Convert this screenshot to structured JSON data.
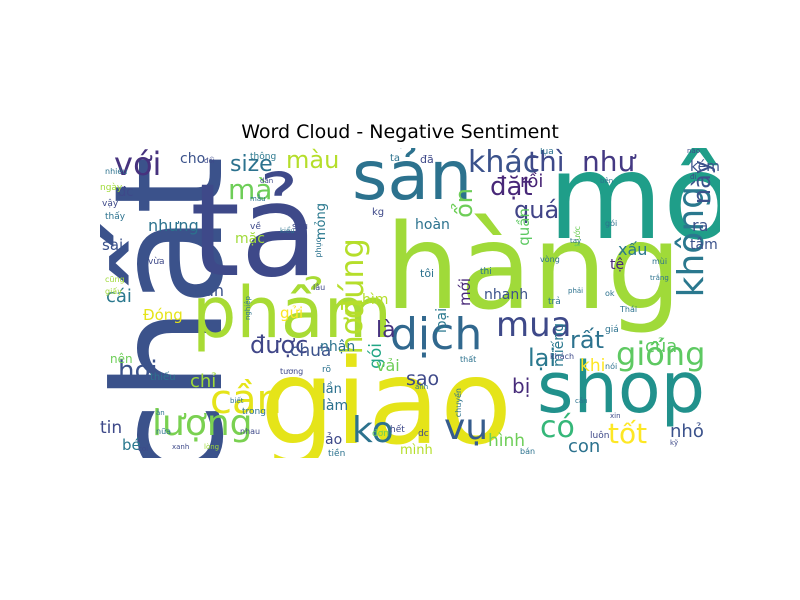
{
  "chart_data": {
    "type": "wordcloud",
    "title": "Word Cloud - Negative Sentiment",
    "colormap": "viridis",
    "background": "#ffffff",
    "words": [
      {
        "text": "hàng",
        "weight": 1.0,
        "color": "#a0da39"
      },
      {
        "text": "giao",
        "weight": 0.95,
        "color": "#e5e419"
      },
      {
        "text": "chất",
        "weight": 0.93,
        "color": "#3b528b"
      },
      {
        "text": "tả",
        "weight": 0.9,
        "color": "#3e4989"
      },
      {
        "text": "mô",
        "weight": 0.8,
        "color": "#1f9e89"
      },
      {
        "text": "shop",
        "weight": 0.7,
        "color": "#21918c"
      },
      {
        "text": "sản",
        "weight": 0.6,
        "color": "#2c728e"
      },
      {
        "text": "phẩm",
        "weight": 0.55,
        "color": "#a8db34"
      },
      {
        "text": "dịch",
        "weight": 0.45,
        "color": "#31688e"
      },
      {
        "text": "lượng",
        "weight": 0.42,
        "color": "#7ad151"
      },
      {
        "text": "vụ",
        "weight": 0.4,
        "color": "#365c8d"
      },
      {
        "text": "cần",
        "weight": 0.38,
        "color": "#e5e419"
      },
      {
        "text": "không",
        "weight": 0.37,
        "color": "#2a788e"
      },
      {
        "text": "ko",
        "weight": 0.36,
        "color": "#2c728e"
      },
      {
        "text": "mua",
        "weight": 0.35,
        "color": "#3e4989"
      },
      {
        "text": "đúng",
        "weight": 0.34,
        "color": "#b5de2b"
      },
      {
        "text": "giống",
        "weight": 0.33,
        "color": "#5ec962"
      },
      {
        "text": "với",
        "weight": 0.32,
        "color": "#46327e"
      },
      {
        "text": "khác",
        "weight": 0.31,
        "color": "#3b528b"
      },
      {
        "text": "hơn",
        "weight": 0.31,
        "color": "#b5de2b"
      },
      {
        "text": "có",
        "weight": 0.3,
        "color": "#35b779"
      },
      {
        "text": "tốt",
        "weight": 0.29,
        "color": "#fde725"
      },
      {
        "text": "thì",
        "weight": 0.29,
        "color": "#3e4989"
      },
      {
        "text": "như",
        "weight": 0.28,
        "color": "#443983"
      },
      {
        "text": "mà",
        "weight": 0.28,
        "color": "#6ece58"
      },
      {
        "text": "size",
        "weight": 0.27,
        "color": "#2c728e"
      },
      {
        "text": "màu",
        "weight": 0.27,
        "color": "#b5de2b"
      },
      {
        "text": "hơi",
        "weight": 0.27,
        "color": "#3b528b"
      },
      {
        "text": "quá",
        "weight": 0.27,
        "color": "#414487"
      },
      {
        "text": "lại",
        "weight": 0.27,
        "color": "#2a788e"
      },
      {
        "text": "đặt",
        "weight": 0.26,
        "color": "#482878"
      },
      {
        "text": "này",
        "weight": 0.26,
        "color": "#3b528b"
      },
      {
        "text": "ổn",
        "weight": 0.25,
        "color": "#6ece58"
      },
      {
        "text": "được",
        "weight": 0.24,
        "color": "#404688"
      },
      {
        "text": "là",
        "weight": 0.24,
        "color": "#46327e"
      },
      {
        "text": "rất",
        "weight": 0.23,
        "color": "#2c728e"
      },
      {
        "text": "rồi",
        "weight": 0.22,
        "color": "#482475"
      },
      {
        "text": "của",
        "weight": 0.2,
        "color": "#5ec962"
      },
      {
        "text": "nhỏ",
        "weight": 0.2,
        "color": "#3b528b"
      },
      {
        "text": "bị",
        "weight": 0.2,
        "color": "#472c7a"
      },
      {
        "text": "con",
        "weight": 0.2,
        "color": "#2c728e"
      },
      {
        "text": "hình",
        "weight": 0.2,
        "color": "#6ece58"
      },
      {
        "text": "gói",
        "weight": 0.19,
        "color": "#21a685"
      },
      {
        "text": "sao",
        "weight": 0.19,
        "color": "#3e4989"
      },
      {
        "text": "chưa",
        "weight": 0.18,
        "color": "#3b528b"
      },
      {
        "text": "khi",
        "weight": 0.18,
        "color": "#fde725"
      },
      {
        "text": "tin",
        "weight": 0.18,
        "color": "#3e4989"
      },
      {
        "text": "bé",
        "weight": 0.17,
        "color": "#2a788e"
      },
      {
        "text": "chỉ",
        "weight": 0.17,
        "color": "#a0da39"
      },
      {
        "text": "toàn",
        "weight": 0.17,
        "color": "#3b528b"
      },
      {
        "text": "cái",
        "weight": 0.17,
        "color": "#2a788e"
      },
      {
        "text": "sai",
        "weight": 0.16,
        "color": "#3b528b"
      },
      {
        "text": "nhưng",
        "weight": 0.16,
        "color": "#2c728e"
      },
      {
        "text": "mặc",
        "weight": 0.15,
        "color": "#a0da39"
      },
      {
        "text": "gửi",
        "weight": 0.16,
        "color": "#fde725"
      },
      {
        "text": "vải",
        "weight": 0.17,
        "color": "#6ece58"
      },
      {
        "text": "bìm",
        "weight": 0.14,
        "color": "#b5de2b"
      },
      {
        "text": "nhận",
        "weight": 0.17,
        "color": "#2c728e"
      },
      {
        "text": "loại",
        "weight": 0.16,
        "color": "#2a788e"
      },
      {
        "text": "mới",
        "weight": 0.16,
        "color": "#482878"
      },
      {
        "text": "nhanh",
        "weight": 0.16,
        "color": "#3b528b"
      },
      {
        "text": "miếng",
        "weight": 0.15,
        "color": "#2a788e"
      },
      {
        "text": "quần",
        "weight": 0.15,
        "color": "#5ec962"
      },
      {
        "text": "hoàn",
        "weight": 0.14,
        "color": "#2c728e"
      },
      {
        "text": "mỏng",
        "weight": 0.14,
        "color": "#2a788e"
      },
      {
        "text": "xấu",
        "weight": 0.14,
        "color": "#2a788e"
      },
      {
        "text": "tệ",
        "weight": 0.14,
        "color": "#482878"
      },
      {
        "text": "ra",
        "weight": 0.14,
        "color": "#3b528b"
      },
      {
        "text": "tâm",
        "weight": 0.13,
        "color": "#3b528b"
      },
      {
        "text": "kém",
        "weight": 0.13,
        "color": "#3b528b"
      },
      {
        "text": "cho",
        "weight": 0.13,
        "color": "#3b528b"
      },
      {
        "text": "đc",
        "weight": 0.12,
        "color": "#3e4989"
      },
      {
        "text": "mình",
        "weight": 0.13,
        "color": "#b5de2b"
      },
      {
        "text": "làm",
        "weight": 0.13,
        "color": "#2c728e"
      },
      {
        "text": "lần",
        "weight": 0.12,
        "color": "#2c728e"
      },
      {
        "text": "ảo",
        "weight": 0.12,
        "color": "#3e4989"
      },
      {
        "text": "Đóng",
        "weight": 0.13,
        "color": "#e5e419"
      },
      {
        "text": "nên",
        "weight": 0.11,
        "color": "#6ece58"
      },
      {
        "text": "thiếu",
        "weight": 0.1,
        "color": "#2c728e"
      },
      {
        "text": "hết",
        "weight": 0.09,
        "color": "#3e4989"
      },
      {
        "text": "dc",
        "weight": 0.09,
        "color": "#3e4989"
      },
      {
        "text": "luôn",
        "weight": 0.09,
        "color": "#3e4989"
      },
      {
        "text": "thông",
        "weight": 0.09,
        "color": "#2a788e"
      },
      {
        "text": "đã",
        "weight": 0.1,
        "color": "#3e4989"
      },
      {
        "text": "ta",
        "weight": 0.09,
        "color": "#2c728e"
      },
      {
        "text": "kg",
        "weight": 0.09,
        "color": "#3e4989"
      },
      {
        "text": "sau",
        "weight": 0.08,
        "color": "#3e4989"
      },
      {
        "text": "về",
        "weight": 0.08,
        "color": "#3e4989"
      },
      {
        "text": "tôi",
        "weight": 0.09,
        "color": "#2c728e"
      },
      {
        "text": "thi",
        "weight": 0.08,
        "color": "#2c728e"
      },
      {
        "text": "trả",
        "weight": 0.09,
        "color": "#2c728e"
      },
      {
        "text": "ngày",
        "weight": 0.08,
        "color": "#a0da39"
      },
      {
        "text": "giá",
        "weight": 0.08,
        "color": "#2c728e"
      },
      {
        "text": "tiền",
        "weight": 0.08,
        "color": "#2c728e"
      },
      {
        "text": "trong",
        "weight": 0.07,
        "color": "#2c728e"
      },
      {
        "text": "thấy",
        "weight": 0.08,
        "color": "#2c728e"
      },
      {
        "text": "vậy",
        "weight": 0.08,
        "color": "#3e4989"
      },
      {
        "text": "nữa",
        "weight": 0.07,
        "color": "#2c728e"
      },
      {
        "text": "khách",
        "weight": 0.07,
        "color": "#3e4989"
      },
      {
        "text": "đơn",
        "weight": 0.07,
        "color": "#6ece58"
      },
      {
        "text": "vừa",
        "weight": 0.07,
        "color": "#3e4989"
      },
      {
        "text": "rõ",
        "weight": 0.08,
        "color": "#2c728e"
      },
      {
        "text": "nhau",
        "weight": 0.07,
        "color": "#3e4989"
      },
      {
        "text": "chuyển",
        "weight": 0.07,
        "color": "#2c728e"
      },
      {
        "text": "nhiều",
        "weight": 0.07,
        "color": "#2c728e"
      },
      {
        "text": "cũng",
        "weight": 0.07,
        "color": "#a0da39"
      },
      {
        "text": "giấy",
        "weight": 0.07,
        "color": "#a0da39"
      },
      {
        "text": "nói",
        "weight": 0.07,
        "color": "#2c728e"
      },
      {
        "text": "thất",
        "weight": 0.07,
        "color": "#2c728e"
      },
      {
        "text": "bán",
        "weight": 0.06,
        "color": "#2c728e"
      },
      {
        "text": "lâu",
        "weight": 0.06,
        "color": "#3e4989"
      },
      {
        "text": "ok",
        "weight": 0.06,
        "color": "#2c728e"
      },
      {
        "text": "xanh",
        "weight": 0.06,
        "color": "#3e4989"
      },
      {
        "text": "phục",
        "weight": 0.06,
        "color": "#2c728e"
      },
      {
        "text": "nghiệp",
        "weight": 0.06,
        "color": "#2c728e"
      },
      {
        "text": "kiểu",
        "weight": 0.06,
        "color": "#2c728e"
      },
      {
        "text": "tương",
        "weight": 0.06,
        "color": "#3e4989"
      },
      {
        "text": "vòng",
        "weight": 0.06,
        "color": "#2c728e"
      },
      {
        "text": "lụa",
        "weight": 0.06,
        "color": "#2c728e"
      },
      {
        "text": "gói",
        "weight": 0.06,
        "color": "#2c728e"
      },
      {
        "text": "trước",
        "weight": 0.06,
        "color": "#6ece58"
      },
      {
        "text": "bên",
        "weight": 0.05,
        "color": "#2c728e"
      },
      {
        "text": "dán",
        "weight": 0.05,
        "color": "#3e4989"
      },
      {
        "text": "kỹ",
        "weight": 0.05,
        "color": "#3e4989"
      },
      {
        "text": "biết",
        "weight": 0.05,
        "color": "#2c728e"
      },
      {
        "text": "nào",
        "weight": 0.05,
        "color": "#3e4989"
      },
      {
        "text": "đi",
        "weight": 0.05,
        "color": "#3e4989"
      },
      {
        "text": "ăn",
        "weight": 0.05,
        "color": "#2c728e"
      },
      {
        "text": "mùi",
        "weight": 0.05,
        "color": "#2c728e"
      },
      {
        "text": "Thái",
        "weight": 0.05,
        "color": "#2c728e"
      },
      {
        "text": "trắng",
        "weight": 0.05,
        "color": "#2c728e"
      },
      {
        "text": "lòng",
        "weight": 0.05,
        "color": "#a0da39"
      },
      {
        "text": "cần",
        "weight": 0.05,
        "color": "#2c728e"
      },
      {
        "text": "đổi",
        "weight": 0.05,
        "color": "#3e4989"
      },
      {
        "text": "xin",
        "weight": 0.04,
        "color": "#3e4989"
      },
      {
        "text": "coi",
        "weight": 0.04,
        "color": "#3e4989"
      },
      {
        "text": "mẫu",
        "weight": 0.04,
        "color": "#2c728e"
      },
      {
        "text": "ảnh",
        "weight": 0.04,
        "color": "#2c728e"
      },
      {
        "text": "phải",
        "weight": 0.04,
        "color": "#2c728e"
      },
      {
        "text": "tay",
        "weight": 0.04,
        "color": "#2c728e"
      }
    ]
  }
}
